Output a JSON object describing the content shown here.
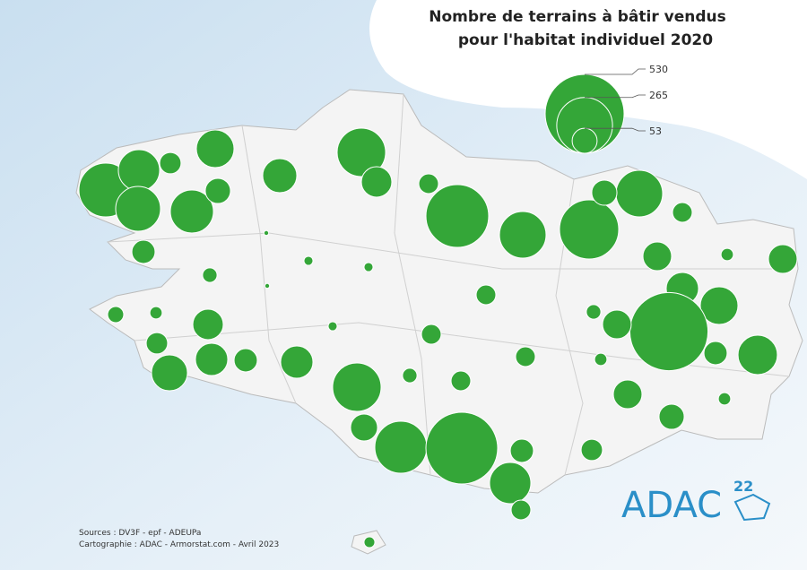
{
  "title": [
    "Nombre de terrains à bâtir vendus",
    "pour l'habitat individuel 2020"
  ],
  "color": "#34a638",
  "legend": {
    "values": [
      530,
      265,
      53
    ]
  },
  "circles": [
    246,
    145,
    39,
    121,
    171,
    158,
    54,
    99,
    200,
    79,
    33,
    335,
    185,
    298,
    185,
    54,
    33,
    46,
    2,
    7,
    7,
    18,
    2,
    33,
    70,
    13,
    70,
    89,
    121,
    520,
    70,
    18,
    22,
    13,
    79,
    39,
    89,
    110,
    46,
    89,
    7,
    33,
    33,
    46,
    132,
    13,
    200,
    18,
    33,
    70,
    13,
    54,
    62,
    230,
    438,
    46,
    39,
    145,
    33,
    10
  ],
  "sources": [
    "Sources : DV3F - epf - ADEUPa",
    "Cartographie : ADAC - Armorstat.com - Avril 2023"
  ],
  "logo": {
    "text": "ADAC",
    "superscript": "22"
  }
}
